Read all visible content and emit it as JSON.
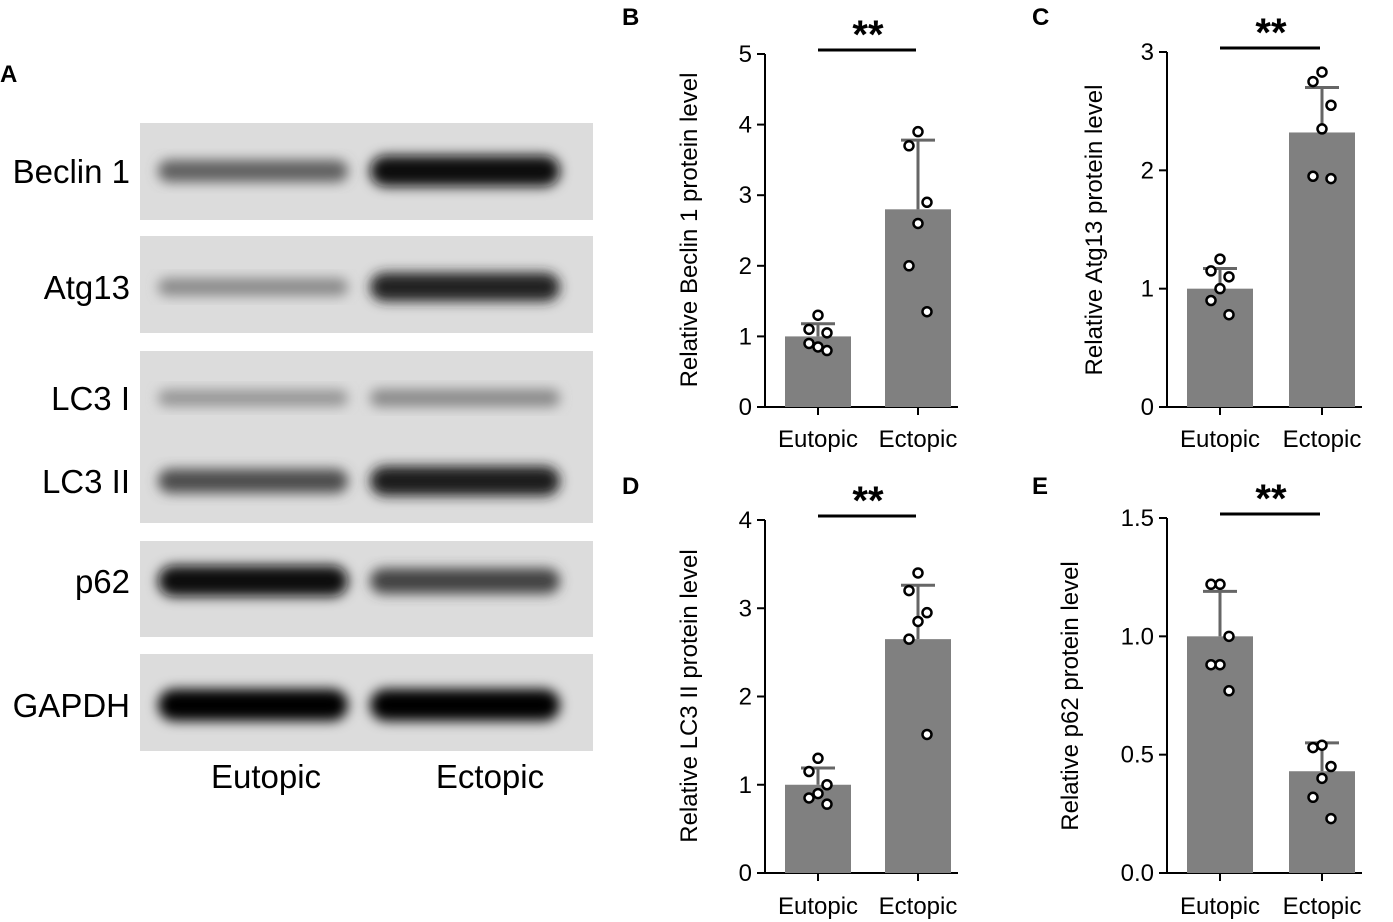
{
  "panel_a": {
    "letter": "A",
    "blots": [
      {
        "label": "Beclin 1",
        "bands": [
          0.55,
          0.95
        ]
      },
      {
        "label": "Atg13",
        "bands": [
          0.35,
          0.85
        ]
      },
      {
        "label": "LC3 I",
        "bands": [
          0.3,
          0.35
        ]
      },
      {
        "label": "LC3 II",
        "bands": [
          0.65,
          0.9
        ]
      },
      {
        "label": "p62",
        "bands": [
          0.95,
          0.7
        ]
      },
      {
        "label": "GAPDH",
        "bands": [
          1.0,
          1.0
        ]
      }
    ],
    "lanes": [
      "Eutopic",
      "Ectopic"
    ]
  },
  "chart_data": [
    {
      "panel": "B",
      "type": "bar",
      "categories": [
        "Eutopic",
        "Ectopic"
      ],
      "values": [
        1.0,
        2.8
      ],
      "error": [
        0.18,
        0.98
      ],
      "points": [
        [
          1.3,
          1.1,
          1.05,
          0.85,
          0.9,
          0.8
        ],
        [
          3.9,
          3.7,
          2.9,
          2.6,
          2.0,
          1.35
        ]
      ],
      "ylabel": "Relative Beclin 1 protein level",
      "ylim": [
        0,
        5
      ],
      "yticks": [
        "0",
        "1",
        "2",
        "3",
        "4",
        "5"
      ],
      "significance": "**",
      "color": "#808080"
    },
    {
      "panel": "C",
      "type": "bar",
      "categories": [
        "Eutopic",
        "Ectopic"
      ],
      "values": [
        1.0,
        2.32
      ],
      "error": [
        0.17,
        0.38
      ],
      "points": [
        [
          1.25,
          1.15,
          1.1,
          1.0,
          0.9,
          0.78
        ],
        [
          2.83,
          2.75,
          2.55,
          2.35,
          1.95,
          1.93
        ]
      ],
      "ylabel": "Relative Atg13 protein level",
      "ylim": [
        0,
        3
      ],
      "yticks": [
        "0",
        "1",
        "2",
        "3"
      ],
      "significance": "**",
      "color": "#808080"
    },
    {
      "panel": "D",
      "type": "bar",
      "categories": [
        "Eutopic",
        "Ectopic"
      ],
      "values": [
        1.0,
        2.65
      ],
      "error": [
        0.19,
        0.61
      ],
      "points": [
        [
          1.3,
          1.15,
          1.0,
          0.9,
          0.85,
          0.78
        ],
        [
          3.4,
          3.2,
          2.95,
          2.85,
          2.65,
          1.57
        ]
      ],
      "ylabel": "Relative LC3 II protein level",
      "ylim": [
        0,
        4
      ],
      "yticks": [
        "0",
        "1",
        "2",
        "3",
        "4"
      ],
      "significance": "**",
      "color": "#808080"
    },
    {
      "panel": "E",
      "type": "bar",
      "categories": [
        "Eutopic",
        "Ectopic"
      ],
      "values": [
        1.0,
        0.43
      ],
      "error": [
        0.19,
        0.12
      ],
      "points": [
        [
          1.22,
          1.22,
          1.0,
          0.88,
          0.88,
          0.77
        ],
        [
          0.54,
          0.53,
          0.45,
          0.4,
          0.32,
          0.23
        ]
      ],
      "ylabel": "Relative p62 protein level",
      "ylim": [
        0,
        1.5
      ],
      "yticks": [
        "0.0",
        "0.5",
        "1.0",
        "1.5"
      ],
      "significance": "**",
      "color": "#808080"
    }
  ]
}
